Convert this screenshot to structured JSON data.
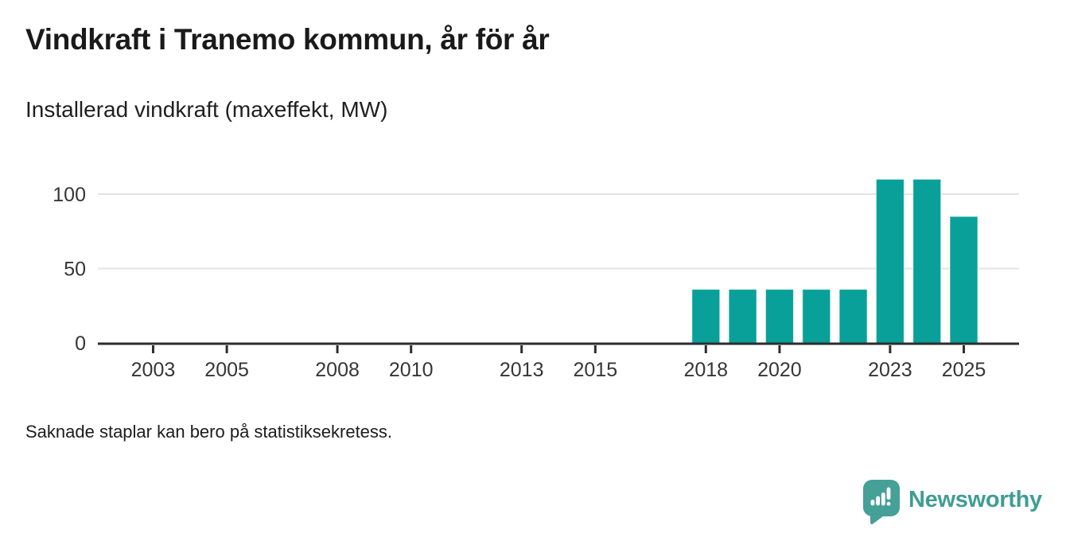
{
  "header": {
    "title": "Vindkraft i Tranemo kommun, år för år",
    "subtitle": "Installerad vindkraft (maxeffekt, MW)"
  },
  "footer": {
    "note": "Saknade staplar kan bero på statistiksekretess.",
    "brand": "Newsworthy",
    "logo_icon": "speech-bubble-bar-chart-icon"
  },
  "colors": {
    "bar": "#09a099",
    "brand_text": "#3f9d94",
    "brand_icon": "#45a097",
    "title_text": "#1a1a1a",
    "axis_text": "#363636",
    "axis_line": "#2d2d2d",
    "gridline": "#e4e4e4",
    "background": "#ffffff"
  },
  "chart_data": {
    "type": "bar",
    "title": "Vindkraft i Tranemo kommun, år för år",
    "subtitle": "Installerad vindkraft (maxeffekt, MW)",
    "unit": "MW",
    "categories": [
      2018,
      2019,
      2020,
      2021,
      2022,
      2023,
      2024,
      2025
    ],
    "values": [
      36,
      36,
      36,
      36,
      36,
      110,
      110,
      85
    ],
    "x_domain": [
      2002,
      2026
    ],
    "x_tick_labels": [
      "2003",
      "2005",
      "2008",
      "2010",
      "2013",
      "2015",
      "2018",
      "2020",
      "2023",
      "2025"
    ],
    "y_tick_values": [
      0,
      50,
      100
    ],
    "y_tick_labels": [
      "0",
      "50",
      "100"
    ],
    "ylim": [
      0,
      116
    ],
    "xlabel": "",
    "ylabel": "",
    "grid": "horizontal-only",
    "legend": "none",
    "bar_color": "#09a099"
  }
}
